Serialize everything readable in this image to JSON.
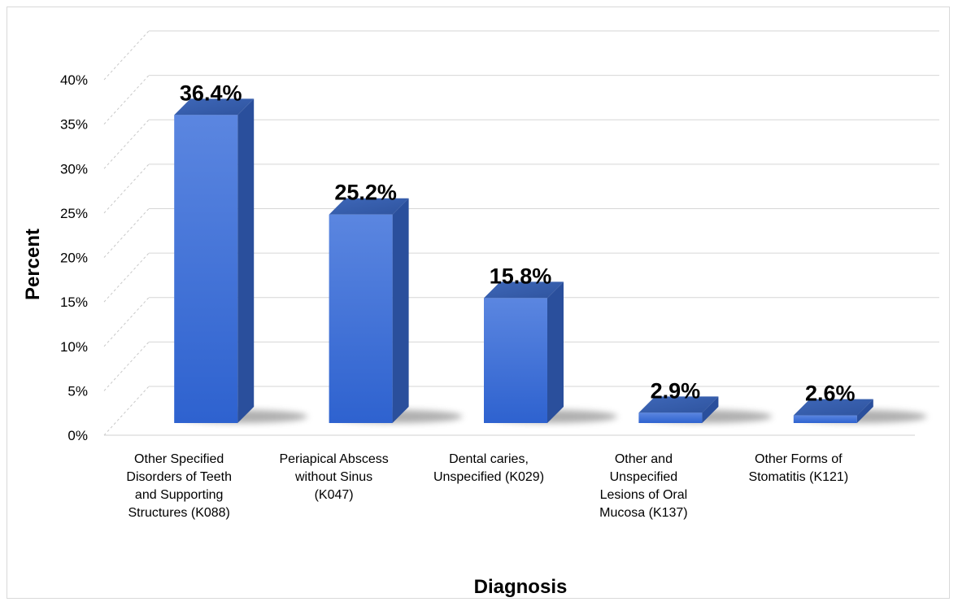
{
  "chart_data": {
    "type": "bar",
    "title": "",
    "xlabel": "Diagnosis",
    "ylabel": "Percent",
    "ylim": [
      0,
      40
    ],
    "yticks": [
      "0%",
      "5%",
      "10%",
      "15%",
      "20%",
      "25%",
      "30%",
      "35%",
      "40%"
    ],
    "categories": [
      [
        "Other Specified",
        "Disorders of Teeth",
        "and Supporting",
        "Structures (K088)"
      ],
      [
        "Periapical Abscess",
        "without Sinus",
        "(K047)"
      ],
      [
        "Dental caries,",
        "Unspecified (K029)"
      ],
      [
        "Other and",
        "Unspecified",
        "Lesions of Oral",
        "Mucosa (K137)"
      ],
      [
        "Other Forms of",
        "Stomatitis (K121)"
      ]
    ],
    "values": [
      36.4,
      25.2,
      15.8,
      2.9,
      2.6
    ],
    "data_labels": [
      "36.4%",
      "25.2%",
      "15.8%",
      "2.9%",
      "2.6%"
    ],
    "bar_color": "#3a6fd8",
    "grid": true,
    "legend": "none"
  }
}
